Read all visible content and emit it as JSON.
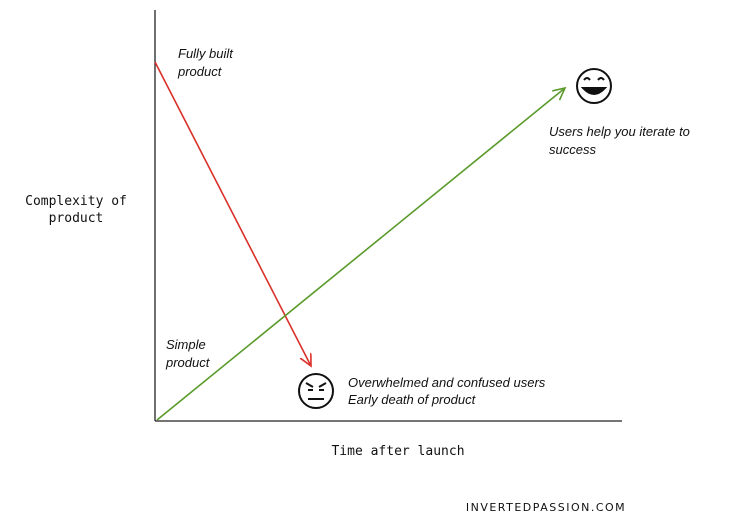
{
  "axes": {
    "y_label": [
      "Complexity of",
      "product"
    ],
    "x_label": "Time after launch"
  },
  "annotations": {
    "fully_built": [
      "Fully built",
      "product"
    ],
    "simple": [
      "Simple",
      "product"
    ],
    "success": [
      "Users help you iterate to",
      "success"
    ],
    "failure": [
      "Overwhelmed and confused users",
      "Early death of product"
    ]
  },
  "footer": "INVERTEDPASSION.COM"
}
